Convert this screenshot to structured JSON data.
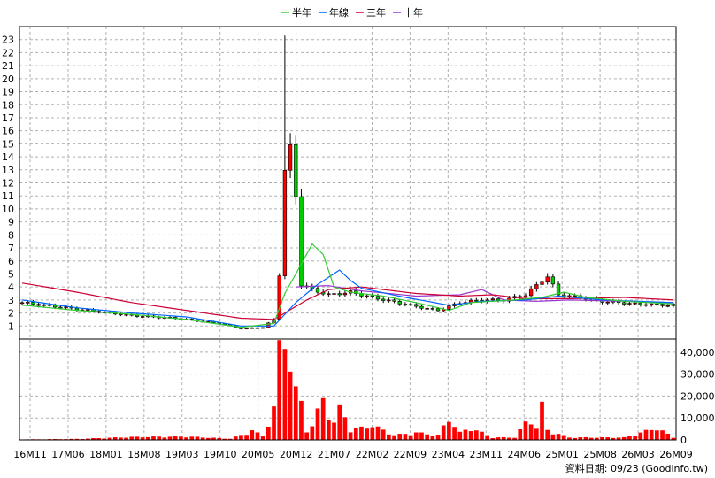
{
  "legend": [
    {
      "name": "半年",
      "color": "#33cc33"
    },
    {
      "name": "年線",
      "color": "#0066ff"
    },
    {
      "name": "三年",
      "color": "#cc0033"
    },
    {
      "name": "十年",
      "color": "#9933cc"
    }
  ],
  "footer": "資料日期: 09/23 (Goodinfo.tw)",
  "chart_data": {
    "type": "candlestick",
    "price_axis": {
      "ylim": [
        0,
        24
      ],
      "ticks": [
        1,
        2,
        3,
        4,
        5,
        6,
        7,
        8,
        9,
        10,
        11,
        12,
        13,
        14,
        15,
        16,
        17,
        18,
        19,
        20,
        21,
        22,
        23
      ]
    },
    "volume_axis": {
      "ylim": [
        0,
        46000
      ],
      "ticks": [
        0,
        10000,
        20000,
        30000,
        40000
      ],
      "tick_labels": [
        "0",
        "10,000",
        "20,000",
        "30,000",
        "40,000"
      ]
    },
    "x_tick_labels": [
      "16M11",
      "17M06",
      "18M01",
      "18M08",
      "19M03",
      "19M10",
      "20M05",
      "20M12",
      "21M07",
      "22M02",
      "22M09",
      "23M04",
      "23M11",
      "24M06",
      "25M01",
      "25M08",
      "26M03",
      "26M09"
    ],
    "n_bars": 120,
    "grid": true,
    "candles_anchor": [
      [
        0,
        2.8
      ],
      [
        8,
        2.4
      ],
      [
        16,
        2.0
      ],
      [
        20,
        1.8
      ],
      [
        28,
        1.6
      ],
      [
        36,
        1.2
      ],
      [
        40,
        0.8
      ],
      [
        44,
        0.9
      ],
      [
        46,
        1.5
      ],
      [
        47,
        5.0
      ],
      [
        48,
        13.0
      ],
      [
        49,
        14.5
      ],
      [
        50,
        11.0
      ],
      [
        51,
        4.2
      ],
      [
        53,
        3.8
      ],
      [
        56,
        3.4
      ],
      [
        60,
        3.6
      ],
      [
        64,
        3.2
      ],
      [
        72,
        2.5
      ],
      [
        76,
        2.2
      ],
      [
        80,
        2.8
      ],
      [
        84,
        3.0
      ],
      [
        88,
        3.0
      ],
      [
        92,
        3.4
      ],
      [
        95,
        4.5
      ],
      [
        96,
        4.8
      ],
      [
        98,
        3.4
      ],
      [
        102,
        3.2
      ],
      [
        106,
        2.9
      ],
      [
        112,
        2.7
      ],
      [
        118,
        2.6
      ],
      [
        119,
        2.6
      ]
    ],
    "ma_half_anchor": [
      [
        0,
        2.6
      ],
      [
        10,
        2.2
      ],
      [
        20,
        1.9
      ],
      [
        30,
        1.5
      ],
      [
        40,
        0.9
      ],
      [
        46,
        1.2
      ],
      [
        48,
        3.5
      ],
      [
        50,
        5.0
      ],
      [
        53,
        7.3
      ],
      [
        55,
        6.5
      ],
      [
        57,
        4.0
      ],
      [
        60,
        3.6
      ],
      [
        66,
        3.3
      ],
      [
        72,
        2.8
      ],
      [
        78,
        2.2
      ],
      [
        82,
        2.8
      ],
      [
        90,
        3.0
      ],
      [
        95,
        3.2
      ],
      [
        99,
        3.6
      ],
      [
        103,
        3.2
      ],
      [
        110,
        2.9
      ],
      [
        119,
        2.7
      ]
    ],
    "ma_year_anchor": [
      [
        0,
        3.0
      ],
      [
        10,
        2.4
      ],
      [
        20,
        2.0
      ],
      [
        30,
        1.7
      ],
      [
        40,
        1.0
      ],
      [
        46,
        1.0
      ],
      [
        50,
        2.8
      ],
      [
        54,
        4.2
      ],
      [
        58,
        5.3
      ],
      [
        60,
        4.5
      ],
      [
        62,
        3.9
      ],
      [
        70,
        3.2
      ],
      [
        78,
        2.6
      ],
      [
        84,
        2.9
      ],
      [
        92,
        3.0
      ],
      [
        98,
        3.3
      ],
      [
        106,
        3.0
      ],
      [
        119,
        2.8
      ]
    ],
    "ma_three_anchor": [
      [
        0,
        4.3
      ],
      [
        10,
        3.6
      ],
      [
        20,
        2.8
      ],
      [
        30,
        2.2
      ],
      [
        40,
        1.6
      ],
      [
        46,
        1.5
      ],
      [
        52,
        3.0
      ],
      [
        56,
        3.8
      ],
      [
        62,
        4.0
      ],
      [
        72,
        3.5
      ],
      [
        80,
        3.3
      ],
      [
        86,
        3.4
      ],
      [
        92,
        3.1
      ],
      [
        100,
        3.1
      ],
      [
        110,
        3.2
      ],
      [
        119,
        3.0
      ]
    ],
    "ma_ten_anchor": [
      [
        50,
        4.0
      ],
      [
        56,
        4.1
      ],
      [
        62,
        3.7
      ],
      [
        72,
        3.3
      ],
      [
        80,
        3.4
      ],
      [
        84,
        3.8
      ],
      [
        88,
        3.0
      ],
      [
        94,
        2.9
      ],
      [
        100,
        3.0
      ],
      [
        110,
        2.9
      ],
      [
        119,
        2.8
      ]
    ],
    "volume_anchor": [
      [
        0,
        200
      ],
      [
        10,
        400
      ],
      [
        20,
        1200
      ],
      [
        30,
        1400
      ],
      [
        38,
        500
      ],
      [
        40,
        2000
      ],
      [
        42,
        4000
      ],
      [
        44,
        1500
      ],
      [
        46,
        13000
      ],
      [
        47,
        37000
      ],
      [
        48,
        43000
      ],
      [
        49,
        33000
      ],
      [
        50,
        20000
      ],
      [
        51,
        15000
      ],
      [
        52,
        4000
      ],
      [
        53,
        6000
      ],
      [
        55,
        17000
      ],
      [
        57,
        7000
      ],
      [
        58,
        13000
      ],
      [
        59,
        10000
      ],
      [
        60,
        4000
      ],
      [
        64,
        6000
      ],
      [
        68,
        2000
      ],
      [
        72,
        3000
      ],
      [
        76,
        2000
      ],
      [
        78,
        9000
      ],
      [
        80,
        3000
      ],
      [
        82,
        5000
      ],
      [
        86,
        1000
      ],
      [
        90,
        1000
      ],
      [
        92,
        7000
      ],
      [
        93,
        8000
      ],
      [
        94,
        5000
      ],
      [
        95,
        14000
      ],
      [
        96,
        4000
      ],
      [
        100,
        1000
      ],
      [
        110,
        1000
      ],
      [
        116,
        5000
      ],
      [
        119,
        1000
      ]
    ]
  }
}
